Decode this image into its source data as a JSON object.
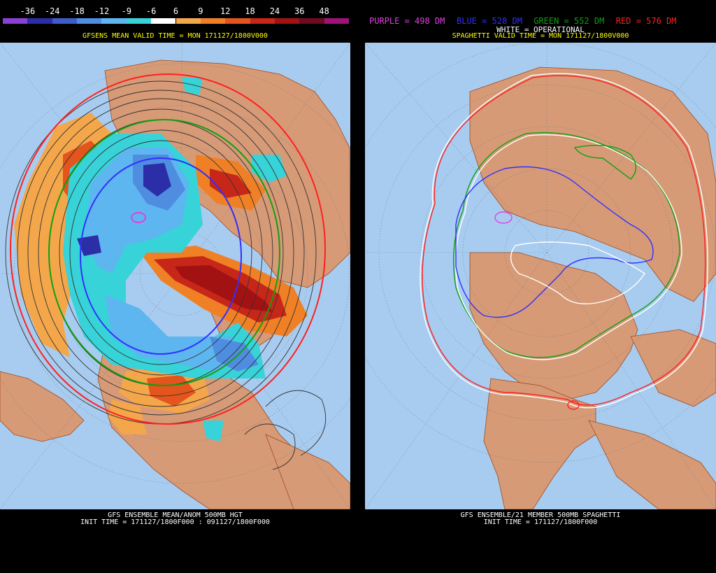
{
  "left": {
    "colorbar_labels": [
      "-36",
      "-24",
      "-18",
      "-12",
      "-9",
      "-6",
      "6",
      "9",
      "12",
      "18",
      "24",
      "36",
      "48"
    ],
    "colorbar_colors": [
      "#8a3fd6",
      "#2b2ea6",
      "#3d5ec9",
      "#4f8de0",
      "#5db6ef",
      "#37d3d8",
      "#ffffff",
      "#f4a64b",
      "#ef8025",
      "#e4541d",
      "#c72718",
      "#a31212",
      "#6d0b22",
      "#a0127a"
    ],
    "valid_time": "GFSENS MEAN VALID TIME = MON 171127/1800V000",
    "footer_line1": "GFS ENSEMBLE MEAN/ANOM 500MB HGT",
    "footer_line2": "INIT TIME = 171127/1800F000 : 091127/1800F000"
  },
  "right": {
    "legend": [
      {
        "text": "PURPLE = 498 DM",
        "color": "#e040e0"
      },
      {
        "text": "BLUE = 528 DM",
        "color": "#3030ff"
      },
      {
        "text": "GREEN = 552 DM",
        "color": "#10a010"
      },
      {
        "text": "RED = 576 DM",
        "color": "#ff2020"
      }
    ],
    "legend_white": "WHITE = OPERATIONAL",
    "valid_time": "SPAGHETTI VALID TIME = MON 171127/1800V000",
    "footer_line1": "GFS ENSEMBLE/21 MEMBER 500MB SPAGHETTI",
    "footer_line2": "INIT TIME = 171127/1800F000"
  },
  "colors": {
    "ocean": "#a8ccef",
    "land": "#d69a77",
    "border": "#a14b20",
    "timestamp_yellow": "#ffff00"
  }
}
